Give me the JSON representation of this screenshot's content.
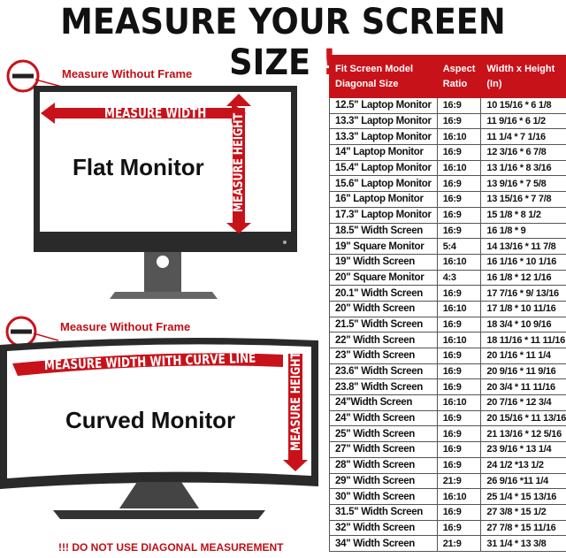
{
  "title": {
    "text": "MEASURE YOUR SCREEN SIZE",
    "exclaim": "!"
  },
  "flat": {
    "frame_label": "Measure Without Frame",
    "width_label": "MEASURE WIDTH",
    "height_label": "MEASURE HEIGHT",
    "name": "Flat Monitor"
  },
  "curved": {
    "frame_label": "Measure Without Frame",
    "width_label": "MEASURE WIDTH WITH CURVE LINE",
    "height_label": "MEASURE HEIGHT",
    "name": "Curved Monitor"
  },
  "warning": "!!! DO NOT USE DIAGONAL MEASUREMENT",
  "colors": {
    "accent": "#c8121a",
    "bezel": "#2a2a2a"
  },
  "table": {
    "headers": [
      "Fit Screen Model Diagonal Size",
      "Aspect Ratio",
      "Width x Height (In)"
    ],
    "rows": [
      [
        "12.5\" Laptop Monitor",
        "16:9",
        "10 15/16 * 6 1/8"
      ],
      [
        "13.3\" Laptop Monitor",
        "16:9",
        "11 9/16 * 6 1/2"
      ],
      [
        "13.3\" Laptop Monitor",
        "16:10",
        "11 1/4 * 7 1/16"
      ],
      [
        "14\" Laptop Monitor",
        "16:9",
        "12 3/16 * 6 7/8"
      ],
      [
        "15.4\" Laptop Monitor",
        "16:10",
        "13 1/16 * 8 3/16"
      ],
      [
        "15.6\" Laptop Monitor",
        "16:9",
        "13 9/16 * 7 5/8"
      ],
      [
        "16\" Laptop Monitor",
        "16:9",
        "13 15/16 * 7 7/8"
      ],
      [
        "17.3\" Laptop Monitor",
        "16:9",
        "15 1/8 * 8 1/2"
      ],
      [
        "18.5\" Width Screen",
        "16:9",
        "16 1/8 * 9"
      ],
      [
        "19\" Square Monitor",
        "5:4",
        "14 13/16 * 11 7/8"
      ],
      [
        "19\" Width Screen",
        "16:10",
        "16 1/16 * 10 1/16"
      ],
      [
        "20\" Square Monitor",
        "4:3",
        "16 1/8 * 12 1/16"
      ],
      [
        "20.1\" Width Screen",
        "16:9",
        "17 7/16 * 9/ 13/16"
      ],
      [
        "20\" Width Screen",
        "16:10",
        "17 1/8 * 10 11/16"
      ],
      [
        "21.5\" Width Screen",
        "16:9",
        "18 3/4 * 10 9/16"
      ],
      [
        "22\" Width Screen",
        "16:10",
        "18 11/16 * 11 11/16"
      ],
      [
        "23\" Width Screen",
        "16:9",
        "20 1/16 * 11 1/4"
      ],
      [
        "23.6\" Width Screen",
        "16:9",
        "20 9/16 * 11 9/16"
      ],
      [
        "23.8\" Width Screen",
        "16:9",
        "20 3/4 * 11 11/16"
      ],
      [
        "24\"Width Screen",
        "16:10",
        "20 7/16 * 12 3/4"
      ],
      [
        "24\" Width Screen",
        "16:9",
        "20 15/16 * 11 13/16"
      ],
      [
        "25\" Width Screen",
        "16:9",
        "21 13/16 * 12 5/16"
      ],
      [
        "27\" Width Screen",
        "16:9",
        "23 9/16 * 13 1/4"
      ],
      [
        "28\" Width Screen",
        "16:9",
        "24 1/2 *13 1/2"
      ],
      [
        "29\" Width Screen",
        "21:9",
        "26 9/16 *11 1/4"
      ],
      [
        "30\" Width Screen",
        "16:10",
        "25 1/4 * 15 13/16"
      ],
      [
        "31.5\" Width Screen",
        "16:9",
        "27 3/8 * 15 1/2"
      ],
      [
        "32\" Width Screen",
        "16:9",
        "27 7/8 * 15 11/16"
      ],
      [
        "34\" Width Screen",
        "21:9",
        "31 1/4 * 13 3/8"
      ]
    ]
  }
}
